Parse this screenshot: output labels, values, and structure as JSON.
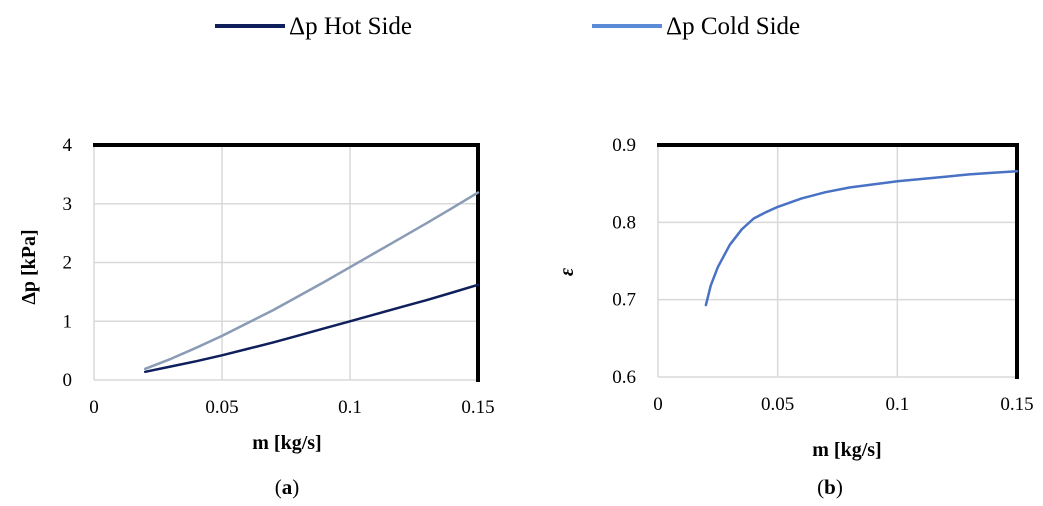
{
  "legend": [
    {
      "label": "Δp Hot Side",
      "color": "#0f1f5c"
    },
    {
      "label": "Δp Cold Side",
      "color": "#5b8bd6"
    }
  ],
  "chart_data": [
    {
      "type": "line",
      "panel_label": {
        "open": "(",
        "letter": "a",
        "close": ")"
      },
      "xlabel": "m [kg/s]",
      "ylabel": "Δp [kPa]",
      "xlim": [
        0,
        0.15
      ],
      "ylim": [
        0,
        4
      ],
      "x_ticks": [
        0,
        0.05,
        0.1,
        0.15
      ],
      "x_tick_labels": [
        "0",
        "0.05",
        "0.1",
        "0.15"
      ],
      "y_ticks": [
        0,
        1,
        2,
        3,
        4
      ],
      "y_tick_labels": [
        "0",
        "1",
        "2",
        "3",
        "4"
      ],
      "grid": true,
      "series": [
        {
          "name": "Δp Hot Side",
          "color": "#0f1f5c",
          "x": [
            0.02,
            0.03,
            0.04,
            0.05,
            0.06,
            0.07,
            0.08,
            0.09,
            0.1,
            0.11,
            0.12,
            0.13,
            0.14,
            0.15
          ],
          "y": [
            0.14,
            0.23,
            0.32,
            0.42,
            0.53,
            0.64,
            0.76,
            0.88,
            1.0,
            1.12,
            1.24,
            1.36,
            1.49,
            1.62
          ]
        },
        {
          "name": "Δp Cold Side",
          "color": "#8a9bb5",
          "x": [
            0.02,
            0.03,
            0.04,
            0.05,
            0.06,
            0.07,
            0.08,
            0.09,
            0.1,
            0.11,
            0.12,
            0.13,
            0.14,
            0.15
          ],
          "y": [
            0.19,
            0.36,
            0.55,
            0.75,
            0.97,
            1.19,
            1.43,
            1.67,
            1.92,
            2.17,
            2.42,
            2.67,
            2.93,
            3.19
          ]
        }
      ]
    },
    {
      "type": "line",
      "panel_label": {
        "open": "(",
        "letter": "b",
        "close": ")"
      },
      "xlabel": "m [kg/s]",
      "ylabel": "ε",
      "xlim": [
        0,
        0.15
      ],
      "ylim": [
        0.6,
        0.9
      ],
      "x_ticks": [
        0,
        0.05,
        0.1,
        0.15
      ],
      "x_tick_labels": [
        "0",
        "0.05",
        "0.1",
        "0.15"
      ],
      "y_ticks": [
        0.6,
        0.7,
        0.8,
        0.9
      ],
      "y_tick_labels": [
        "0.6",
        "0.7",
        "0.8",
        "0.9"
      ],
      "grid": true,
      "series": [
        {
          "color": "#4a72c4",
          "x": [
            0.02,
            0.022,
            0.025,
            0.03,
            0.035,
            0.04,
            0.045,
            0.05,
            0.06,
            0.07,
            0.08,
            0.09,
            0.1,
            0.11,
            0.12,
            0.13,
            0.14,
            0.15
          ],
          "y": [
            0.693,
            0.718,
            0.742,
            0.771,
            0.791,
            0.805,
            0.813,
            0.82,
            0.831,
            0.839,
            0.845,
            0.849,
            0.853,
            0.856,
            0.859,
            0.862,
            0.864,
            0.866
          ]
        }
      ]
    }
  ]
}
